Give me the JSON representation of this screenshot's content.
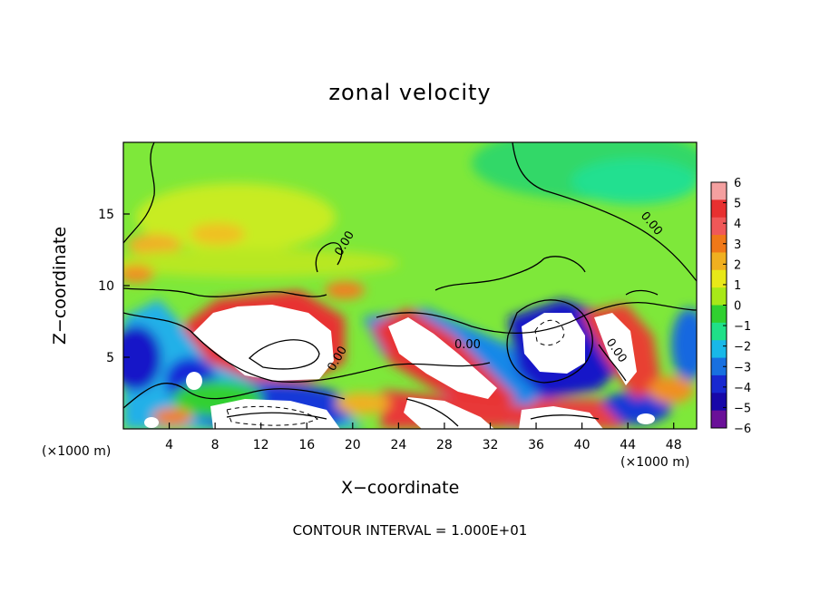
{
  "chart_data": {
    "type": "heatmap",
    "title": "zonal velocity",
    "xlabel": "X−coordinate",
    "ylabel": "Z−coordinate",
    "x_unit": "(×1000 m)",
    "footnote": "CONTOUR INTERVAL = 1.000E+01",
    "xlim": [
      0,
      50
    ],
    "ylim": [
      0,
      20
    ],
    "x_ticks": [
      4,
      8,
      12,
      16,
      20,
      24,
      28,
      32,
      36,
      40,
      44,
      48
    ],
    "y_ticks": [
      5,
      10,
      15
    ],
    "contour_labels": [
      "0.00",
      "0.00",
      "0.00",
      "0.00",
      "0.00"
    ],
    "colorbar": {
      "levels": [
        6,
        5,
        4,
        3,
        2,
        1,
        0,
        -1,
        -2,
        -3,
        -4,
        -5,
        -6
      ],
      "colors": [
        "#f4a0a0",
        "#e83030",
        "#f05858",
        "#f07818",
        "#f0b020",
        "#e8e818",
        "#a8e818",
        "#30d030",
        "#20e088",
        "#18b8e8",
        "#1870e0",
        "#1828d0",
        "#1808a8",
        "#6a1098"
      ]
    },
    "features": [
      {
        "kind": "positive",
        "x": 12.5,
        "z": 7.2,
        "value": 6
      },
      {
        "kind": "positive",
        "x": 26,
        "z": 5.5,
        "value": 6
      },
      {
        "kind": "positive",
        "x": 44.5,
        "z": 6.5,
        "value": 5
      },
      {
        "kind": "positive",
        "x": 29,
        "z": 1.2,
        "value": 6
      },
      {
        "kind": "positive",
        "x": 10,
        "z": 17,
        "value": 2
      },
      {
        "kind": "negative",
        "x": 37.5,
        "z": 5.5,
        "value": -6
      },
      {
        "kind": "negative",
        "x": 14,
        "z": 1.5,
        "value": -6
      },
      {
        "kind": "negative",
        "x": 40,
        "z": 1,
        "value": -6
      },
      {
        "kind": "negative",
        "x": 1,
        "z": 5,
        "value": -4
      },
      {
        "kind": "negative",
        "x": 6,
        "z": 3.5,
        "value": -4
      }
    ]
  }
}
